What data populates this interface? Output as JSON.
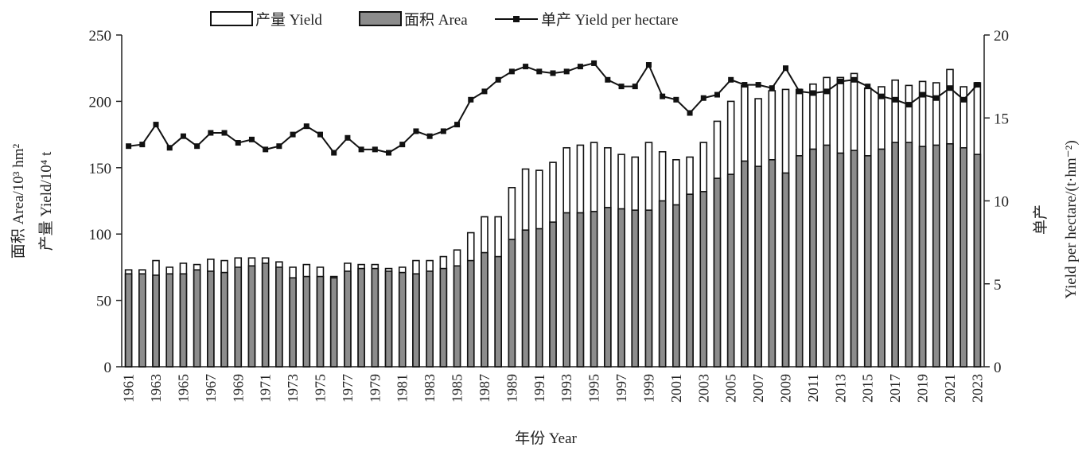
{
  "chart_data": {
    "type": "bar+line",
    "x_title": "年份 Year",
    "y_left_title_line1": "面积 Area/10³ hm²",
    "y_left_title_line2": "产量 Yield/10⁴ t",
    "y_right_title_line1": "单产",
    "y_right_title_line2": "Yield per hectare/(t·hm⁻²)",
    "legend": [
      "产量 Yield",
      "面积 Area",
      "单产 Yield per hectare"
    ],
    "y_left_ticks": [
      "0",
      "50",
      "100",
      "150",
      "200",
      "250"
    ],
    "y_right_ticks": [
      "0",
      "5",
      "10",
      "15",
      "20"
    ],
    "y_left_range": [
      0,
      250
    ],
    "y_right_range": [
      0,
      20
    ],
    "years": [
      1961,
      1962,
      1963,
      1964,
      1965,
      1966,
      1967,
      1968,
      1969,
      1970,
      1971,
      1972,
      1973,
      1974,
      1975,
      1976,
      1977,
      1978,
      1979,
      1980,
      1981,
      1982,
      1983,
      1984,
      1985,
      1986,
      1987,
      1988,
      1989,
      1990,
      1991,
      1992,
      1993,
      1994,
      1995,
      1996,
      1997,
      1998,
      1999,
      2000,
      2001,
      2002,
      2003,
      2004,
      2005,
      2006,
      2007,
      2008,
      2009,
      2010,
      2011,
      2012,
      2013,
      2014,
      2015,
      2016,
      2017,
      2018,
      2019,
      2020,
      2021,
      2022,
      2023
    ],
    "x_tick_labels": [
      "1961",
      "1963",
      "1965",
      "1967",
      "1969",
      "1971",
      "1973",
      "1975",
      "1977",
      "1979",
      "1981",
      "1983",
      "1985",
      "1987",
      "1989",
      "1991",
      "1993",
      "1995",
      "1997",
      "1999",
      "2001",
      "2003",
      "2005",
      "2007",
      "2009",
      "2011",
      "2013",
      "2015",
      "2017",
      "2019",
      "2021",
      "2023"
    ],
    "series": [
      {
        "name": "产量 Yield",
        "axis": "left",
        "kind": "bar",
        "values": [
          73,
          73,
          80,
          75,
          78,
          77,
          81,
          80,
          82,
          82,
          82,
          79,
          75,
          77,
          75,
          68,
          78,
          77,
          77,
          74,
          75,
          80,
          80,
          83,
          88,
          101,
          113,
          113,
          135,
          149,
          148,
          154,
          165,
          167,
          169,
          165,
          160,
          158,
          169,
          162,
          156,
          158,
          169,
          185,
          200,
          212,
          202,
          208,
          209,
          209,
          213,
          218,
          218,
          221,
          210,
          211,
          216,
          212,
          215,
          214,
          224,
          211,
          214
        ]
      },
      {
        "name": "面积 Area",
        "axis": "left",
        "kind": "bar",
        "values": [
          70,
          70,
          69,
          70,
          70,
          73,
          72,
          71,
          75,
          76,
          78,
          75,
          67,
          68,
          68,
          67,
          72,
          74,
          74,
          72,
          71,
          70,
          72,
          74,
          76,
          80,
          86,
          83,
          96,
          103,
          104,
          109,
          116,
          116,
          117,
          120,
          119,
          118,
          118,
          125,
          122,
          130,
          132,
          142,
          145,
          155,
          151,
          156,
          146,
          159,
          164,
          167,
          161,
          163,
          159,
          164,
          169,
          169,
          166,
          167,
          168,
          165,
          160
        ]
      },
      {
        "name": "单产 Yield per hectare",
        "axis": "right",
        "kind": "line",
        "values": [
          13.3,
          13.4,
          14.6,
          13.2,
          13.9,
          13.3,
          14.1,
          14.1,
          13.5,
          13.7,
          13.1,
          13.3,
          14.0,
          14.5,
          14.0,
          12.9,
          13.8,
          13.1,
          13.1,
          12.9,
          13.4,
          14.2,
          13.9,
          14.2,
          14.6,
          16.1,
          16.6,
          17.3,
          17.8,
          18.1,
          17.8,
          17.7,
          17.8,
          18.1,
          18.3,
          17.3,
          16.9,
          16.9,
          18.2,
          16.3,
          16.1,
          15.3,
          16.2,
          16.4,
          17.3,
          17.0,
          17.0,
          16.8,
          18.0,
          16.6,
          16.5,
          16.6,
          17.2,
          17.3,
          16.9,
          16.3,
          16.1,
          15.8,
          16.4,
          16.2,
          16.8,
          16.1,
          17.0
        ]
      }
    ]
  }
}
